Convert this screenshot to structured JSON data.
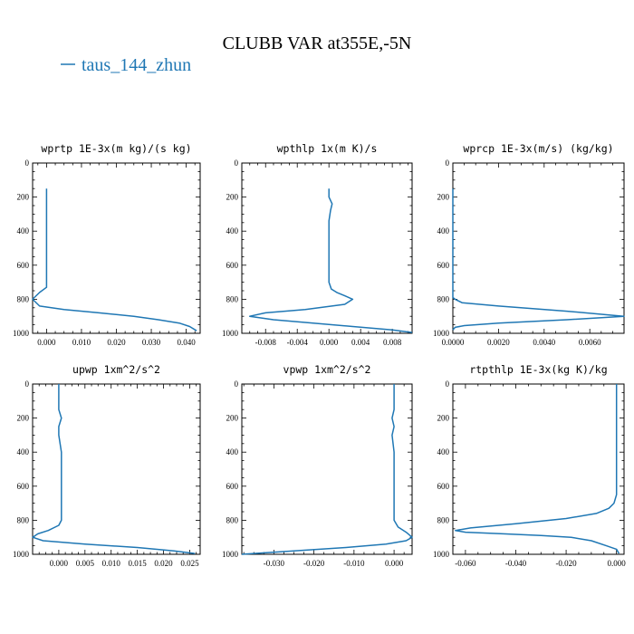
{
  "figure": {
    "title": "CLUBB VAR at355E,-5N",
    "legend": {
      "label": "taus_144_zhun",
      "color": "#1f77b4"
    },
    "line_color": "#1f77b4"
  },
  "chart_data": [
    {
      "type": "line",
      "title": "wprtp  1E-3x(m kg)/(s kg)",
      "xlim": [
        -0.004,
        0.044
      ],
      "ylim": [
        1000,
        0
      ],
      "x_ticks": [
        0.0,
        0.01,
        0.02,
        0.03,
        0.04
      ],
      "x_tick_labels": [
        "0.000",
        "0.010",
        "0.020",
        "0.030",
        "0.040"
      ],
      "y_ticks": [
        0,
        200,
        400,
        600,
        800,
        1000
      ],
      "y_tick_labels": [
        "0",
        "200",
        "400",
        "600",
        "800",
        "1000"
      ],
      "series": [
        {
          "x": [
            0.0,
            0.0,
            0.0,
            0.0,
            0.0,
            0.0,
            0.0,
            0.0,
            -0.002,
            -0.004,
            -0.002,
            0.005,
            0.015,
            0.025,
            0.032,
            0.038,
            0.041,
            0.043
          ],
          "y": [
            150,
            200,
            300,
            400,
            500,
            600,
            700,
            730,
            760,
            800,
            840,
            860,
            880,
            900,
            920,
            940,
            960,
            985
          ]
        }
      ]
    },
    {
      "type": "line",
      "title": "wpthlp  1x(m K)/s",
      "xlim": [
        -0.011,
        0.0105
      ],
      "ylim": [
        1000,
        0
      ],
      "x_ticks": [
        -0.008,
        -0.004,
        0.0,
        0.004,
        0.008
      ],
      "x_tick_labels": [
        "-0.008",
        "-0.004",
        "0.000",
        "0.004",
        "0.008"
      ],
      "y_ticks": [
        0,
        200,
        400,
        600,
        800,
        1000
      ],
      "y_tick_labels": [
        "0",
        "200",
        "400",
        "600",
        "800",
        "1000"
      ],
      "series": [
        {
          "x": [
            0.0,
            0.0,
            0.0004,
            0.0002,
            0.0,
            0.0,
            0.0,
            0.0,
            0.0,
            0.0003,
            0.001,
            0.002,
            0.003,
            0.002,
            -0.003,
            -0.008,
            -0.01,
            -0.007,
            -0.002,
            0.003,
            0.008,
            0.0105
          ],
          "y": [
            150,
            200,
            240,
            280,
            340,
            400,
            500,
            600,
            700,
            740,
            760,
            780,
            800,
            830,
            860,
            880,
            900,
            920,
            940,
            960,
            980,
            995
          ]
        }
      ]
    },
    {
      "type": "line",
      "title": "wprcp  1E-3x(m/s) (kg/kg)",
      "xlim": [
        0.0,
        0.0075
      ],
      "ylim": [
        1000,
        0
      ],
      "x_ticks": [
        0.0,
        0.002,
        0.004,
        0.006
      ],
      "x_tick_labels": [
        "0.0000",
        "0.0020",
        "0.0040",
        "0.0060"
      ],
      "y_ticks": [
        0,
        200,
        400,
        600,
        800,
        1000
      ],
      "y_tick_labels": [
        "0",
        "200",
        "400",
        "600",
        "800",
        "1000"
      ],
      "series": [
        {
          "x": [
            0.0,
            0.0,
            0.0,
            0.0,
            0.0,
            0.0001,
            0.0004,
            0.002,
            0.005,
            0.0075,
            0.005,
            0.002,
            0.0005,
            0.0001,
            0.0
          ],
          "y": [
            150,
            300,
            500,
            700,
            790,
            800,
            820,
            840,
            870,
            900,
            920,
            940,
            955,
            965,
            980
          ]
        }
      ]
    },
    {
      "type": "line",
      "title": "upwp  1xm^2/s^2",
      "xlim": [
        -0.005,
        0.027
      ],
      "ylim": [
        1000,
        0
      ],
      "x_ticks": [
        0.0,
        0.005,
        0.01,
        0.015,
        0.02,
        0.025
      ],
      "x_tick_labels": [
        "0.000",
        "0.005",
        "0.010",
        "0.015",
        "0.020",
        "0.025"
      ],
      "y_ticks": [
        0,
        200,
        400,
        600,
        800,
        1000
      ],
      "y_tick_labels": [
        "0",
        "200",
        "400",
        "600",
        "800",
        "1000"
      ],
      "series": [
        {
          "x": [
            0.0,
            0.0,
            0.0005,
            0.0,
            0.0,
            0.0005,
            0.0005,
            0.0005,
            0.0005,
            0.0005,
            0.0,
            -0.002,
            -0.004,
            -0.005,
            -0.003,
            0.005,
            0.015,
            0.022,
            0.026
          ],
          "y": [
            0,
            150,
            200,
            250,
            300,
            400,
            500,
            600,
            700,
            800,
            830,
            860,
            880,
            900,
            920,
            940,
            960,
            980,
            995
          ]
        }
      ]
    },
    {
      "type": "line",
      "title": "vpwp  1xm^2/s^2",
      "xlim": [
        -0.038,
        0.0045
      ],
      "ylim": [
        1000,
        0
      ],
      "x_ticks": [
        -0.03,
        -0.02,
        -0.01,
        0.0
      ],
      "x_tick_labels": [
        "-0.030",
        "-0.020",
        "-0.010",
        "0.000"
      ],
      "y_ticks": [
        0,
        200,
        400,
        600,
        800,
        1000
      ],
      "y_tick_labels": [
        "0",
        "200",
        "400",
        "600",
        "800",
        "1000"
      ],
      "series": [
        {
          "x": [
            0.0,
            0.0,
            -0.0005,
            0.0,
            -0.0005,
            0.0,
            0.0,
            0.0,
            0.0,
            0.0,
            0.001,
            0.003,
            0.0045,
            0.003,
            -0.002,
            -0.012,
            -0.025,
            -0.035,
            -0.038
          ],
          "y": [
            0,
            150,
            200,
            250,
            300,
            400,
            500,
            600,
            700,
            800,
            840,
            870,
            900,
            920,
            940,
            960,
            980,
            995,
            1000
          ]
        }
      ]
    },
    {
      "type": "line",
      "title": "rtpthlp  1E-3x(kg K)/kg",
      "xlim": [
        -0.065,
        0.003
      ],
      "ylim": [
        1000,
        0
      ],
      "x_ticks": [
        -0.06,
        -0.04,
        -0.02,
        0.0
      ],
      "x_tick_labels": [
        "-0.060",
        "-0.040",
        "-0.020",
        "0.000"
      ],
      "y_ticks": [
        0,
        200,
        400,
        600,
        800,
        1000
      ],
      "y_tick_labels": [
        "0",
        "200",
        "400",
        "600",
        "800",
        "1000"
      ],
      "series": [
        {
          "x": [
            0.0,
            0.0,
            0.0,
            0.0,
            0.0,
            0.0,
            -0.001,
            -0.003,
            -0.008,
            -0.02,
            -0.04,
            -0.058,
            -0.064,
            -0.06,
            -0.045,
            -0.03,
            -0.018,
            -0.01,
            -0.004,
            0.0,
            0.001
          ],
          "y": [
            0,
            200,
            400,
            500,
            600,
            650,
            700,
            730,
            760,
            790,
            820,
            845,
            860,
            870,
            880,
            890,
            900,
            920,
            950,
            970,
            995
          ]
        }
      ]
    }
  ]
}
